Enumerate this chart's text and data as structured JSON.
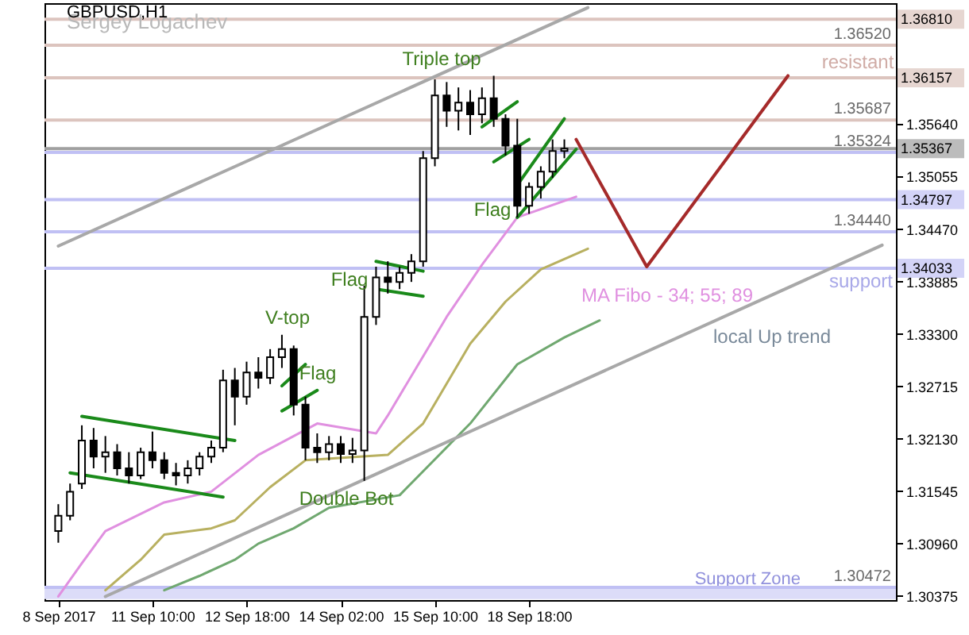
{
  "chart_data": {
    "type": "candlestick",
    "title": "GBPUSD,H1",
    "categories": [
      "8 Sep 2017",
      null,
      null,
      null,
      null,
      null,
      null,
      null,
      "11 Sep 10:00",
      null,
      null,
      null,
      null,
      null,
      null,
      null,
      "12 Sep 18:00",
      null,
      null,
      null,
      null,
      null,
      null,
      null,
      "14 Sep 02:00",
      null,
      null,
      null,
      null,
      null,
      null,
      null,
      "15 Sep 10:00",
      null,
      null,
      null,
      null,
      null,
      null,
      null,
      "18 Sep 18:00",
      null,
      null,
      null,
      null,
      null,
      null,
      null,
      null,
      null,
      null,
      null,
      null,
      null,
      null,
      null,
      null,
      null,
      null,
      null,
      null,
      null,
      null,
      null,
      null,
      null,
      null,
      null,
      null,
      null,
      null
    ],
    "ohlc": [
      [
        1.311,
        1.314,
        1.3097,
        1.3127
      ],
      [
        1.3127,
        1.3163,
        1.3122,
        1.3154
      ],
      [
        1.3163,
        1.3228,
        1.3157,
        1.3211
      ],
      [
        1.3211,
        1.3225,
        1.318,
        1.3193
      ],
      [
        1.3193,
        1.3216,
        1.3175,
        1.3198
      ],
      [
        1.3198,
        1.3207,
        1.3172,
        1.318
      ],
      [
        1.318,
        1.3198,
        1.3163,
        1.3172
      ],
      [
        1.3172,
        1.3203,
        1.3168,
        1.3198
      ],
      [
        1.3198,
        1.3221,
        1.318,
        1.3189
      ],
      [
        1.3189,
        1.3198,
        1.3168,
        1.3175
      ],
      [
        1.3175,
        1.3186,
        1.3161,
        1.3172
      ],
      [
        1.3172,
        1.3189,
        1.3163,
        1.318
      ],
      [
        1.318,
        1.3198,
        1.3172,
        1.3193
      ],
      [
        1.3193,
        1.3211,
        1.3186,
        1.3203
      ],
      [
        1.3203,
        1.329,
        1.3198,
        1.3278
      ],
      [
        1.3278,
        1.3292,
        1.3228,
        1.326
      ],
      [
        1.326,
        1.3299,
        1.3251,
        1.3287
      ],
      [
        1.3287,
        1.3304,
        1.3269,
        1.3281
      ],
      [
        1.3281,
        1.3313,
        1.3274,
        1.3304
      ],
      [
        1.3304,
        1.3329,
        1.3292,
        1.3313
      ],
      [
        1.3313,
        1.3317,
        1.3239,
        1.3251
      ],
      [
        1.3251,
        1.326,
        1.3189,
        1.3203
      ],
      [
        1.3203,
        1.3219,
        1.3186,
        1.3198
      ],
      [
        1.3198,
        1.3216,
        1.3189,
        1.3207
      ],
      [
        1.3207,
        1.3216,
        1.3186,
        1.3196
      ],
      [
        1.3196,
        1.3214,
        1.3186,
        1.32
      ],
      [
        1.32,
        1.3384,
        1.3166,
        1.3349
      ],
      [
        1.3349,
        1.3405,
        1.334,
        1.3393
      ],
      [
        1.3393,
        1.3411,
        1.3375,
        1.3388
      ],
      [
        1.3388,
        1.3405,
        1.338,
        1.3398
      ],
      [
        1.3398,
        1.3419,
        1.3388,
        1.3411
      ],
      [
        1.3411,
        1.3534,
        1.3405,
        1.3526
      ],
      [
        1.3526,
        1.3614,
        1.3517,
        1.3596
      ],
      [
        1.3596,
        1.3611,
        1.3561,
        1.3579
      ],
      [
        1.3579,
        1.3605,
        1.3557,
        1.3588
      ],
      [
        1.3588,
        1.3602,
        1.3552,
        1.3575
      ],
      [
        1.3575,
        1.3605,
        1.3565,
        1.3593
      ],
      [
        1.3593,
        1.3618,
        1.3561,
        1.357
      ],
      [
        1.357,
        1.3575,
        1.3529,
        1.354
      ],
      [
        1.354,
        1.357,
        1.346,
        1.3473
      ],
      [
        1.3473,
        1.3499,
        1.3464,
        1.3494
      ],
      [
        1.3494,
        1.3517,
        1.3481,
        1.3511
      ],
      [
        1.3511,
        1.3547,
        1.3504,
        1.3534
      ],
      [
        1.3534,
        1.3547,
        1.3526,
        1.35367
      ],
      null,
      null,
      null,
      null,
      null,
      null,
      null,
      null,
      null,
      null,
      null,
      null,
      null,
      null,
      null,
      null,
      null,
      null,
      null,
      null,
      null,
      null,
      null,
      null,
      null,
      null,
      null
    ],
    "series": [
      {
        "type": "line",
        "color": "#e090e0",
        "values": [
          1.3037,
          null,
          1.3074,
          null,
          1.311,
          null,
          null,
          null,
          null,
          1.3142,
          null,
          null,
          null,
          1.3154,
          null,
          null,
          null,
          1.3195,
          null,
          null,
          null,
          null,
          1.323,
          null,
          null,
          null,
          null,
          1.3219,
          1.3239,
          null,
          null,
          null,
          null,
          1.3349,
          null,
          null,
          1.3407,
          null,
          null,
          1.346,
          null,
          null,
          null,
          null,
          1.3483,
          null,
          null,
          null,
          null,
          null,
          null,
          null,
          null,
          null,
          null,
          null,
          null,
          null,
          null,
          null,
          null,
          null,
          null,
          null,
          null,
          null,
          null,
          null,
          null,
          null,
          null
        ]
      },
      {
        "type": "line",
        "color": "#b8b060",
        "values": [
          null,
          null,
          null,
          null,
          1.3044,
          null,
          null,
          1.3078,
          null,
          1.3106,
          null,
          null,
          null,
          1.3113,
          null,
          1.3122,
          null,
          null,
          1.3159,
          null,
          null,
          1.3189,
          null,
          null,
          null,
          null,
          null,
          null,
          1.3195,
          null,
          null,
          1.323,
          null,
          null,
          null,
          1.3319,
          null,
          null,
          1.3366,
          null,
          null,
          1.3402,
          null,
          null,
          null,
          1.3425,
          null,
          null,
          null,
          null,
          null,
          null,
          null,
          null,
          null,
          null,
          null,
          null,
          null,
          null,
          null,
          null,
          null,
          null,
          null,
          null,
          null,
          null,
          null,
          null,
          null
        ]
      },
      {
        "type": "line",
        "color": "#70a870",
        "values": [
          null,
          null,
          null,
          null,
          null,
          null,
          null,
          null,
          null,
          1.3044,
          null,
          null,
          1.306,
          null,
          null,
          1.3078,
          null,
          1.3096,
          null,
          null,
          1.3113,
          null,
          null,
          1.3136,
          null,
          null,
          null,
          null,
          null,
          1.315,
          null,
          null,
          null,
          null,
          null,
          1.323,
          null,
          null,
          null,
          1.3296,
          null,
          null,
          null,
          1.3326,
          null,
          null,
          1.3345,
          null,
          null,
          null,
          null,
          null,
          null,
          null,
          null,
          null,
          null,
          null,
          null,
          null,
          null,
          null,
          null,
          null,
          null,
          null,
          null,
          null,
          null,
          null,
          null
        ]
      },
      {
        "type": "line",
        "color": "#a8a8a8",
        "values": [
          1.3428,
          null,
          null,
          null,
          null,
          null,
          null,
          null,
          null,
          null,
          null,
          null,
          null,
          null,
          null,
          null,
          null,
          null,
          null,
          null,
          null,
          null,
          null,
          null,
          null,
          null,
          null,
          null,
          null,
          null,
          null,
          null,
          null,
          null,
          null,
          null,
          null,
          null,
          null,
          null,
          null,
          null,
          null,
          null,
          null,
          1.3694,
          null,
          null,
          null,
          null,
          null,
          null,
          null,
          null,
          null,
          null,
          null,
          null,
          null,
          null,
          null,
          null,
          null,
          null,
          null,
          null,
          null,
          null,
          null,
          null,
          null
        ]
      },
      {
        "type": "line",
        "color": "#a8a8a8",
        "values": [
          null,
          null,
          null,
          null,
          1.3037,
          null,
          null,
          null,
          null,
          null,
          null,
          null,
          null,
          null,
          null,
          null,
          null,
          null,
          null,
          null,
          null,
          null,
          null,
          null,
          null,
          null,
          null,
          null,
          null,
          null,
          null,
          null,
          null,
          null,
          null,
          null,
          null,
          null,
          null,
          null,
          null,
          null,
          null,
          null,
          null,
          null,
          null,
          null,
          null,
          null,
          null,
          null,
          null,
          null,
          null,
          null,
          null,
          null,
          null,
          null,
          null,
          null,
          null,
          null,
          null,
          null,
          null,
          null,
          null,
          null,
          1.3429
        ]
      },
      {
        "type": "line",
        "color": "#1a8a1a",
        "values": [
          null,
          null,
          1.3238,
          null,
          null,
          null,
          null,
          null,
          null,
          null,
          null,
          null,
          null,
          null,
          null,
          1.3211,
          null,
          null,
          null,
          null,
          null,
          null,
          null,
          null,
          null,
          null,
          null,
          null,
          null,
          null,
          null,
          null,
          null,
          null,
          null,
          null,
          null,
          null,
          null,
          null,
          null,
          null,
          null,
          null,
          null,
          null,
          null,
          null,
          null,
          null,
          null,
          null,
          null,
          null,
          null,
          null,
          null,
          null,
          null,
          null,
          null,
          null,
          null,
          null,
          null,
          null,
          null,
          null,
          null,
          null,
          null
        ]
      },
      {
        "type": "line",
        "color": "#1a8a1a",
        "values": [
          null,
          1.3175,
          null,
          null,
          null,
          null,
          null,
          null,
          null,
          null,
          null,
          null,
          null,
          null,
          1.3148,
          null,
          null,
          null,
          null,
          null,
          null,
          null,
          null,
          null,
          null,
          null,
          null,
          null,
          null,
          null,
          null,
          null,
          null,
          null,
          null,
          null,
          null,
          null,
          null,
          null,
          null,
          null,
          null,
          null,
          null,
          null,
          null,
          null,
          null,
          null,
          null,
          null,
          null,
          null,
          null,
          null,
          null,
          null,
          null,
          null,
          null,
          null,
          null,
          null,
          null,
          null,
          null,
          null,
          null,
          null,
          null
        ]
      },
      {
        "type": "line",
        "color": "#1a8a1a",
        "values": [
          null,
          null,
          null,
          null,
          null,
          null,
          null,
          null,
          null,
          null,
          null,
          null,
          null,
          null,
          null,
          null,
          null,
          null,
          null,
          1.3272,
          null,
          1.3296,
          null,
          null,
          null,
          null,
          null,
          null,
          null,
          null,
          null,
          null,
          null,
          null,
          null,
          null,
          null,
          null,
          null,
          null,
          null,
          null,
          null,
          null,
          null,
          null,
          null,
          null,
          null,
          null,
          null,
          null,
          null,
          null,
          null,
          null,
          null,
          null,
          null,
          null,
          null,
          null,
          null,
          null,
          null,
          null,
          null,
          null,
          null,
          null,
          null
        ]
      },
      {
        "type": "line",
        "color": "#1a8a1a",
        "values": [
          null,
          null,
          null,
          null,
          null,
          null,
          null,
          null,
          null,
          null,
          null,
          null,
          null,
          null,
          null,
          null,
          null,
          null,
          null,
          1.3244,
          null,
          null,
          1.3267,
          null,
          null,
          null,
          null,
          null,
          null,
          null,
          null,
          null,
          null,
          null,
          null,
          null,
          null,
          null,
          null,
          null,
          null,
          null,
          null,
          null,
          null,
          null,
          null,
          null,
          null,
          null,
          null,
          null,
          null,
          null,
          null,
          null,
          null,
          null,
          null,
          null,
          null,
          null,
          null,
          null,
          null,
          null,
          null,
          null,
          null,
          null,
          null
        ]
      },
      {
        "type": "line",
        "color": "#1a8a1a",
        "values": [
          null,
          null,
          null,
          null,
          null,
          null,
          null,
          null,
          null,
          null,
          null,
          null,
          null,
          null,
          null,
          null,
          null,
          null,
          null,
          null,
          null,
          null,
          null,
          null,
          null,
          null,
          null,
          1.3411,
          null,
          null,
          null,
          1.34,
          null,
          null,
          null,
          null,
          null,
          null,
          null,
          null,
          null,
          null,
          null,
          null,
          null,
          null,
          null,
          null,
          null,
          null,
          null,
          null,
          null,
          null,
          null,
          null,
          null,
          null,
          null,
          null,
          null,
          null,
          null,
          null,
          null,
          null,
          null,
          null,
          null,
          null,
          null
        ]
      },
      {
        "type": "line",
        "color": "#1a8a1a",
        "values": [
          null,
          null,
          null,
          null,
          null,
          null,
          null,
          null,
          null,
          null,
          null,
          null,
          null,
          null,
          null,
          null,
          null,
          null,
          null,
          null,
          null,
          null,
          null,
          null,
          null,
          null,
          null,
          1.338,
          null,
          null,
          null,
          1.3372,
          null,
          null,
          null,
          null,
          null,
          null,
          null,
          null,
          null,
          null,
          null,
          null,
          null,
          null,
          null,
          null,
          null,
          null,
          null,
          null,
          null,
          null,
          null,
          null,
          null,
          null,
          null,
          null,
          null,
          null,
          null,
          null,
          null,
          null,
          null,
          null,
          null,
          null,
          null
        ]
      },
      {
        "type": "line",
        "color": "#1a8a1a",
        "values": [
          null,
          null,
          null,
          null,
          null,
          null,
          null,
          null,
          null,
          null,
          null,
          null,
          null,
          null,
          null,
          null,
          null,
          null,
          null,
          null,
          null,
          null,
          null,
          null,
          null,
          null,
          null,
          null,
          null,
          null,
          null,
          null,
          null,
          null,
          null,
          null,
          1.3561,
          null,
          null,
          1.3589,
          null,
          null,
          null,
          null,
          null,
          null,
          null,
          null,
          null,
          null,
          null,
          null,
          null,
          null,
          null,
          null,
          null,
          null,
          null,
          null,
          null,
          null,
          null,
          null,
          null,
          null,
          null,
          null,
          null,
          null,
          null
        ]
      },
      {
        "type": "line",
        "color": "#1a8a1a",
        "values": [
          null,
          null,
          null,
          null,
          null,
          null,
          null,
          null,
          null,
          null,
          null,
          null,
          null,
          null,
          null,
          null,
          null,
          null,
          null,
          null,
          null,
          null,
          null,
          null,
          null,
          null,
          null,
          null,
          null,
          null,
          null,
          null,
          null,
          null,
          null,
          null,
          null,
          1.3522,
          null,
          null,
          1.3547,
          null,
          null,
          null,
          null,
          null,
          null,
          null,
          null,
          null,
          null,
          null,
          null,
          null,
          null,
          null,
          null,
          null,
          null,
          null,
          null,
          null,
          null,
          null,
          null,
          null,
          null,
          null,
          null,
          null,
          null
        ]
      },
      {
        "type": "line",
        "color": "#1a8a1a",
        "values": [
          null,
          null,
          null,
          null,
          null,
          null,
          null,
          null,
          null,
          null,
          null,
          null,
          null,
          null,
          null,
          null,
          null,
          null,
          null,
          null,
          null,
          null,
          null,
          null,
          null,
          null,
          null,
          null,
          null,
          null,
          null,
          null,
          null,
          null,
          null,
          null,
          null,
          null,
          null,
          1.3496,
          null,
          null,
          null,
          1.357,
          null,
          null,
          null,
          null,
          null,
          null,
          null,
          null,
          null,
          null,
          null,
          null,
          null,
          null,
          null,
          null,
          null,
          null,
          null,
          null,
          null,
          null,
          null,
          null,
          null,
          null,
          null
        ]
      },
      {
        "type": "line",
        "color": "#1a8a1a",
        "values": [
          null,
          null,
          null,
          null,
          null,
          null,
          null,
          null,
          null,
          null,
          null,
          null,
          null,
          null,
          null,
          null,
          null,
          null,
          null,
          null,
          null,
          null,
          null,
          null,
          null,
          null,
          null,
          null,
          null,
          null,
          null,
          null,
          null,
          null,
          null,
          null,
          null,
          null,
          null,
          1.346,
          null,
          null,
          null,
          null,
          1.3536,
          null,
          null,
          null,
          null,
          null,
          null,
          null,
          null,
          null,
          null,
          null,
          null,
          null,
          null,
          null,
          null,
          null,
          null,
          null,
          null,
          null,
          null,
          null,
          null,
          null,
          null
        ]
      },
      {
        "type": "line",
        "color": "#a52a2a",
        "values": [
          null,
          null,
          null,
          null,
          null,
          null,
          null,
          null,
          null,
          null,
          null,
          null,
          null,
          null,
          null,
          null,
          null,
          null,
          null,
          null,
          null,
          null,
          null,
          null,
          null,
          null,
          null,
          null,
          null,
          null,
          null,
          null,
          null,
          null,
          null,
          null,
          null,
          null,
          null,
          null,
          null,
          null,
          null,
          null,
          1.3547,
          null,
          null,
          null,
          null,
          null,
          1.3405,
          null,
          null,
          null,
          null,
          null,
          null,
          null,
          null,
          null,
          null,
          null,
          1.3618,
          null,
          null,
          null,
          null,
          null,
          null,
          null,
          null
        ]
      }
    ],
    "ref_lines": [
      {
        "axis": "y",
        "value": 1.3681,
        "label": "1.36810",
        "color": "#dcc4be"
      },
      {
        "axis": "y",
        "value": 1.3652,
        "label": "1.36520",
        "color": "#dcc4be"
      },
      {
        "axis": "y",
        "value": 1.36157,
        "label": "1.36157",
        "color": "#dcc4be"
      },
      {
        "axis": "y",
        "value": 1.35687,
        "label": "1.35687",
        "color": "#dcc4be"
      },
      {
        "axis": "y",
        "value": 1.35367,
        "label": "1.35367",
        "color": "#a0a0a0"
      },
      {
        "axis": "y",
        "value": 1.35324,
        "label": "1.35324",
        "color": "#c0c0f4"
      },
      {
        "axis": "y",
        "value": 1.34797,
        "label": "1.34797",
        "color": "#c0c0f4"
      },
      {
        "axis": "y",
        "value": 1.3444,
        "label": "1.34440",
        "color": "#c0c0f4"
      },
      {
        "axis": "y",
        "value": 1.34033,
        "label": "1.34033",
        "color": "#c0c0f4"
      },
      {
        "axis": "y",
        "value": 1.30472,
        "label": "1.30472",
        "color": "#c0c0f4"
      }
    ],
    "bands": [
      {
        "axis": "y",
        "from": 1.3034,
        "to": 1.30472,
        "label": "Support Zone",
        "color": "#dcdcf8"
      }
    ],
    "annotations": [
      "Sergey Logachev",
      "Triple top",
      "V-top",
      "Flag",
      "Flag",
      "Flag",
      "Double Bot",
      "MA Fibo - 34; 55; 89",
      "local Up trend",
      "resistant",
      "support"
    ],
    "ylim": [
      1.3033,
      1.3699
    ],
    "yticks": [
      {
        "value": 1.3564,
        "label": "1.35640"
      },
      {
        "value": 1.35055,
        "label": "1.35055"
      },
      {
        "value": 1.3447,
        "label": "1.34470"
      },
      {
        "value": 1.33885,
        "label": "1.33885"
      },
      {
        "value": 1.333,
        "label": "1.33300"
      },
      {
        "value": 1.32715,
        "label": "1.32715"
      },
      {
        "value": 1.3213,
        "label": "1.32130"
      },
      {
        "value": 1.31545,
        "label": "1.31545"
      },
      {
        "value": 1.3096,
        "label": "1.30960"
      },
      {
        "value": 1.30375,
        "label": "1.30375"
      }
    ],
    "grid": false
  }
}
